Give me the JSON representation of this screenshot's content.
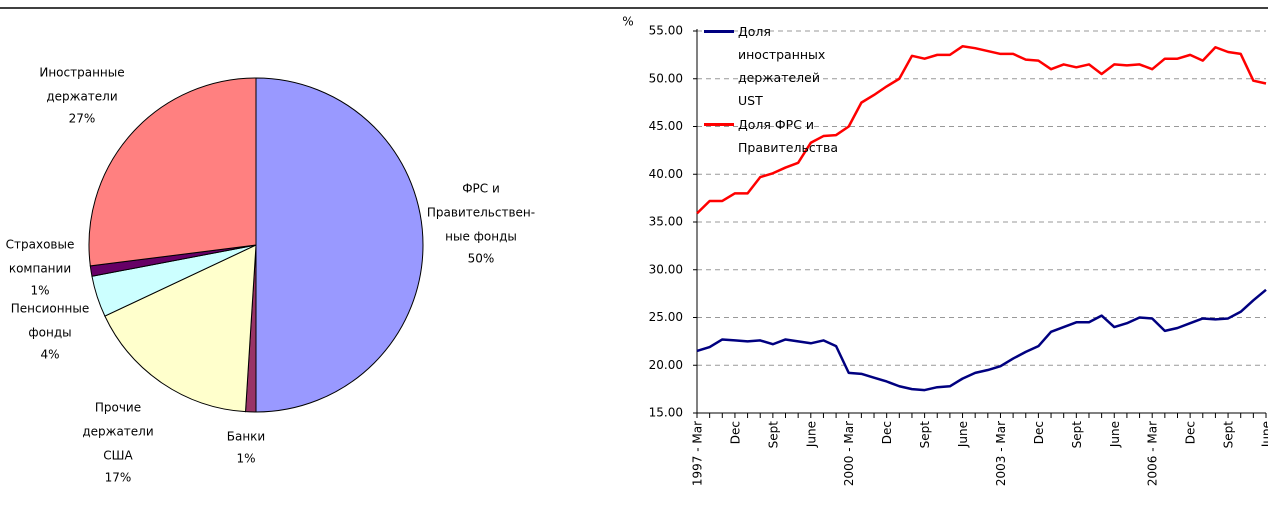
{
  "chart_data": [
    {
      "type": "pie",
      "labels": [
        [
          "ФРС и",
          "Правительствен-",
          "ные фонды"
        ],
        [
          "Банки"
        ],
        [
          "Прочие",
          "держатели",
          "США"
        ],
        [
          "Пенсионные",
          "фонды"
        ],
        [
          "Страховые",
          "компании"
        ],
        [
          "Иностранные",
          "держатели"
        ]
      ],
      "values": [
        50,
        1,
        17,
        4,
        1,
        27
      ],
      "value_labels": [
        "50%",
        "1%",
        "17%",
        "4%",
        "1%",
        "27%"
      ],
      "colors": [
        "#9999ff",
        "#993366",
        "#ffffcc",
        "#ccffff",
        "#660066",
        "#ff8080"
      ]
    },
    {
      "type": "line",
      "y_unit": "%",
      "categories": [
        "1997 - Mar",
        null,
        null,
        "Dec",
        null,
        null,
        "Sept",
        null,
        null,
        "June",
        null,
        null,
        "2000 - Mar",
        null,
        null,
        "Dec",
        null,
        null,
        "Sept",
        null,
        null,
        "June",
        null,
        null,
        "2003 - Mar",
        null,
        null,
        "Dec",
        null,
        null,
        "Sept",
        null,
        null,
        "June",
        null,
        null,
        "2006 - Mar",
        null,
        null,
        "Dec",
        null,
        null,
        "Sept",
        null,
        null,
        "June"
      ],
      "series": [
        {
          "name": "Доля иностранных держателей UST",
          "color": "#000080",
          "values": [
            21.5,
            21.9,
            22.7,
            22.6,
            22.5,
            22.6,
            22.2,
            22.7,
            22.5,
            22.3,
            22.6,
            22.0,
            19.2,
            19.1,
            18.7,
            18.3,
            17.8,
            17.5,
            17.4,
            17.7,
            17.8,
            18.6,
            19.2,
            19.5,
            19.9,
            20.7,
            21.4,
            22.0,
            23.5,
            24.0,
            24.5,
            24.5,
            25.2,
            24.0,
            24.4,
            25.0,
            24.9,
            23.6,
            23.9,
            24.4,
            24.9,
            24.8,
            24.9,
            25.6,
            26.8,
            27.9
          ]
        },
        {
          "name": "Доля ФРС и Правительства",
          "color": "#ff0000",
          "values": [
            35.9,
            37.2,
            37.2,
            38.0,
            38.0,
            39.7,
            40.1,
            40.7,
            41.2,
            43.3,
            44.0,
            44.1,
            45.0,
            47.5,
            48.3,
            49.2,
            50.0,
            52.4,
            52.1,
            52.5,
            52.5,
            53.4,
            53.2,
            52.9,
            52.6,
            52.6,
            52.0,
            51.9,
            51.0,
            51.5,
            51.2,
            51.5,
            50.5,
            51.5,
            51.4,
            51.5,
            51.0,
            52.1,
            52.1,
            52.5,
            51.9,
            53.3,
            52.8,
            52.6,
            49.8,
            49.5
          ]
        }
      ],
      "ylim": [
        15,
        55
      ],
      "yticks": [
        {
          "value": 15,
          "label": "15.00"
        },
        {
          "value": 20,
          "label": "20.00"
        },
        {
          "value": 25,
          "label": "25.00"
        },
        {
          "value": 30,
          "label": "30.00"
        },
        {
          "value": 35,
          "label": "35.00"
        },
        {
          "value": 40,
          "label": "40.00"
        },
        {
          "value": 45,
          "label": "45.00"
        },
        {
          "value": 50,
          "label": "50.00"
        },
        {
          "value": 55,
          "label": "55.00"
        }
      ],
      "grid": true,
      "legend": "top-left"
    }
  ]
}
